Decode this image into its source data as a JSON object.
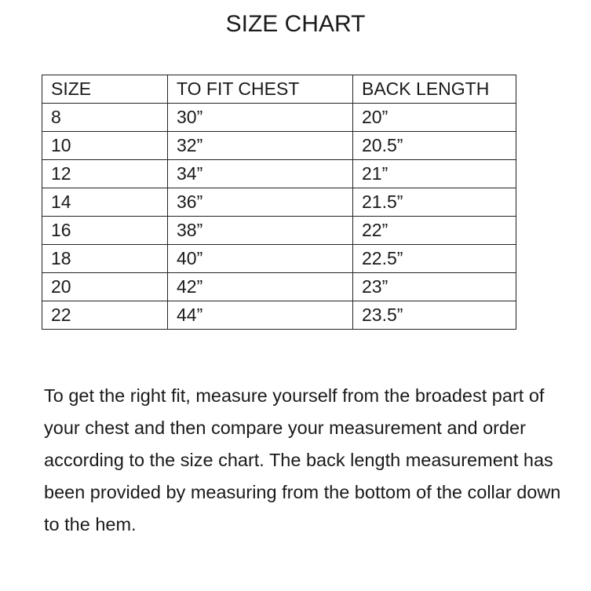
{
  "title": "SIZE CHART",
  "table": {
    "headers": [
      "SIZE",
      "TO FIT CHEST",
      "BACK LENGTH"
    ],
    "rows": [
      [
        "8",
        "30”",
        "20”"
      ],
      [
        "10",
        "32”",
        "20.5”"
      ],
      [
        "12",
        "34”",
        "21”"
      ],
      [
        "14",
        "36”",
        "21.5”"
      ],
      [
        "16",
        "38”",
        "22”"
      ],
      [
        "18",
        "40”",
        "22.5”"
      ],
      [
        "20",
        "42”",
        "23”"
      ],
      [
        "22",
        "44”",
        "23.5”"
      ]
    ]
  },
  "paragraph": "To get the right fit, measure yourself from the broadest part of your chest and then compare your measurement and order according to the size chart. The back length measurement has been provided by measuring from the bottom of the collar down to the hem."
}
